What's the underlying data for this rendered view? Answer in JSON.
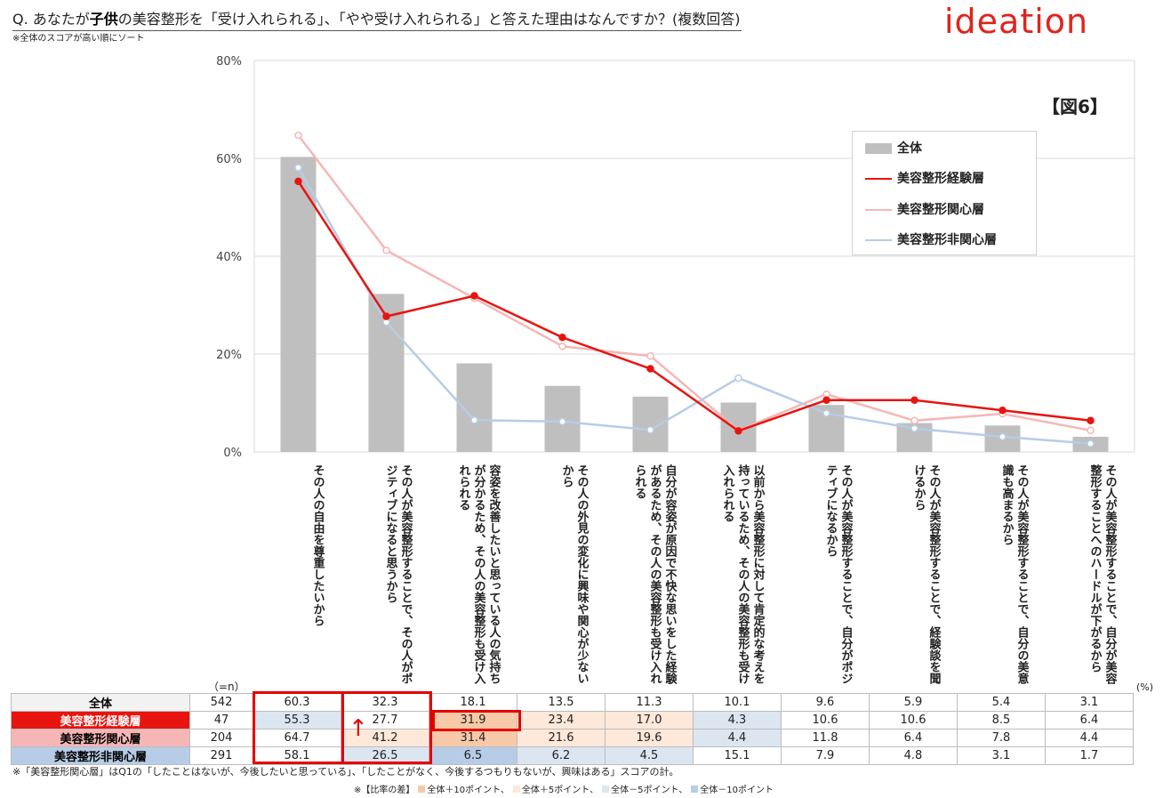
{
  "header": {
    "title_prefix": "Q. あなたが",
    "title_bold": "子供",
    "title_suffix": "の美容整形を「受け入れられる」、「やや受け入れられる」と答えた理由はなんですか？(複数回答)",
    "sort_note": "※全体のスコアが高い順にソート",
    "logo": "ideation",
    "figure_label": "【図6】"
  },
  "colors": {
    "total_bar": "#bfbfbf",
    "experienced": "#e8140f",
    "interested": "#f6b6b6",
    "uninterested": "#b7cce6",
    "highlight": "#e50000"
  },
  "chart_data": {
    "type": "bar+line",
    "y_tick_labels": [
      "0%",
      "20%",
      "40%",
      "60%",
      "80%"
    ],
    "ylim": [
      0,
      80
    ],
    "grid": true,
    "legend_position": "top-right",
    "categories": [
      "その人の自由を尊重したいから",
      "その人が美容整形することで、その人がポジティブになると思うから",
      "容姿を改善したいと思っている人の気持ちが分かるため、その人の美容整形も受け入れられる",
      "その人の外見の変化に興味や関心が少ないから",
      "自分が容姿が原因で不快な思いをした経験があるため、その人の美容整形も受け入れられる",
      "以前から美容整形に対して肯定的な考えを持っているため、その人の美容整形も受け入れられる",
      "その人が美容整形することで、自分がポジティブになるから",
      "その人が美容整形することで、経験談を聞けるから",
      "その人が美容整形することで、自分の美意識も高まるから",
      "その人が美容整形することで、自分が美容整形することへのハードルが下がるから"
    ],
    "series": [
      {
        "name": "全体",
        "type": "bar",
        "values": [
          60.3,
          32.3,
          18.1,
          13.5,
          11.3,
          10.1,
          9.6,
          5.9,
          5.4,
          3.1
        ]
      },
      {
        "name": "美容整形経験層",
        "type": "line",
        "values": [
          55.3,
          27.7,
          31.9,
          23.4,
          17.0,
          4.3,
          10.6,
          10.6,
          8.5,
          6.4
        ]
      },
      {
        "name": "美容整形関心層",
        "type": "line",
        "values": [
          64.7,
          41.2,
          31.4,
          21.6,
          19.6,
          4.4,
          11.8,
          6.4,
          7.8,
          4.4
        ]
      },
      {
        "name": "美容整形非関心層",
        "type": "line",
        "values": [
          58.1,
          26.5,
          6.5,
          6.2,
          4.5,
          15.1,
          7.9,
          4.8,
          3.1,
          1.7
        ]
      }
    ]
  },
  "table": {
    "n_unit": "（=n）",
    "pct_unit": "(%)",
    "rows": [
      {
        "label": "全体",
        "n": "542",
        "values": [
          "60.3",
          "32.3",
          "18.1",
          "13.5",
          "11.3",
          "10.1",
          "9.6",
          "5.9",
          "5.4",
          "3.1"
        ],
        "shade": [
          "",
          "",
          "",
          "",
          "",
          "",
          "",
          "",
          "",
          ""
        ]
      },
      {
        "label": "美容整形経験層",
        "n": "47",
        "values": [
          "55.3",
          "27.7",
          "31.9",
          "23.4",
          "17.0",
          "4.3",
          "10.6",
          "10.6",
          "8.5",
          "6.4"
        ],
        "shade": [
          "m5",
          "",
          "p10",
          "p5",
          "p5",
          "m5",
          "",
          "",
          "",
          ""
        ]
      },
      {
        "label": "美容整形関心層",
        "n": "204",
        "values": [
          "64.7",
          "41.2",
          "31.4",
          "21.6",
          "19.6",
          "4.4",
          "11.8",
          "6.4",
          "7.8",
          "4.4"
        ],
        "shade": [
          "",
          "p5",
          "p10",
          "p5",
          "p5",
          "m5",
          "",
          "",
          "",
          ""
        ]
      },
      {
        "label": "美容整形非関心層",
        "n": "291",
        "values": [
          "58.1",
          "26.5",
          "6.5",
          "6.2",
          "4.5",
          "15.1",
          "7.9",
          "4.8",
          "3.1",
          "1.7"
        ],
        "shade": [
          "",
          "m5",
          "m10",
          "m5",
          "m5",
          "",
          "",
          "",
          "",
          ""
        ]
      }
    ]
  },
  "footnotes": {
    "note1": "※「美容整形関心層」はQ1の「したことはないが、今後したいと思っている」、「したことがなく、今後するつもりもないが、興味はある」スコアの計。",
    "key_title": "※【比率の差】",
    "key_items": [
      "全体＋10ポイント、",
      "全体＋5ポイント、",
      "全体－5ポイント、",
      "全体－10ポイント"
    ]
  }
}
